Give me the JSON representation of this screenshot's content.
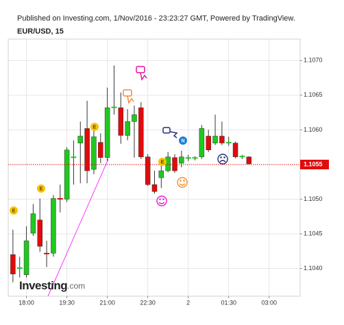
{
  "chart_data": {
    "type": "candlestick",
    "header": "Published on Investing.com, 1/Nov/2016 - 23:23:27 GMT, Powered by TradingView.",
    "title": "EUR/USD, 15",
    "logo": {
      "brand": "Investing",
      "suffix": ".com"
    },
    "up_color": "#1fc81f",
    "down_color": "#e00b0b",
    "open": [
      1.1042,
      1.104,
      1.10391,
      1.10451,
      1.1047,
      1.10422,
      1.10422,
      1.10501,
      1.105,
      1.1056,
      1.10581,
      1.10602,
      1.10543,
      1.10582,
      1.1056,
      1.10632,
      1.10632,
      1.10592,
      1.10612,
      1.10632,
      1.10561,
      1.10521,
      1.10531,
      1.10541,
      1.1056,
      1.10552,
      1.10559,
      1.10559,
      1.10561,
      1.10591,
      1.10581,
      1.10591,
      1.10581,
      1.10581,
      1.10561,
      1.10561
    ],
    "high": [
      1.10456,
      1.10417,
      1.10461,
      1.10493,
      1.10501,
      1.1044,
      1.10506,
      1.10521,
      1.10575,
      1.10585,
      1.10612,
      1.10642,
      1.106,
      1.10595,
      1.10661,
      1.10693,
      1.10654,
      1.1063,
      1.10635,
      1.1064,
      1.10565,
      1.10541,
      1.1055,
      1.10568,
      1.10565,
      1.1057,
      1.10564,
      1.10562,
      1.10607,
      1.106,
      1.10622,
      1.10612,
      1.1059,
      1.10583,
      1.10564,
      1.10562
    ],
    "low": [
      1.1038,
      1.10387,
      1.10387,
      1.10447,
      1.10424,
      1.10402,
      1.10417,
      1.10481,
      1.10496,
      1.10521,
      1.10523,
      1.10523,
      1.10536,
      1.10552,
      1.10555,
      1.10622,
      1.1058,
      1.10585,
      1.1056,
      1.10558,
      1.10519,
      1.10508,
      1.10516,
      1.10539,
      1.10538,
      1.10546,
      1.10555,
      1.10556,
      1.10558,
      1.10568,
      1.10578,
      1.10578,
      1.10577,
      1.10559,
      1.10558,
      1.1055
    ],
    "close": [
      1.10392,
      1.10401,
      1.1044,
      1.10479,
      1.10432,
      1.10421,
      1.10501,
      1.105,
      1.10571,
      1.10561,
      1.10591,
      1.10541,
      1.1059,
      1.1056,
      1.10632,
      1.10633,
      1.10592,
      1.10612,
      1.10622,
      1.10561,
      1.10521,
      1.10511,
      1.10541,
      1.10561,
      1.10541,
      1.10561,
      1.1056,
      1.1056,
      1.10602,
      1.10571,
      1.10591,
      1.10581,
      1.10582,
      1.10561,
      1.10562,
      1.10551
    ],
    "xlim": [
      -0.7,
      42.6
    ],
    "xticks": [
      {
        "value": 2,
        "label": "18:00"
      },
      {
        "value": 8,
        "label": "19:30"
      },
      {
        "value": 14,
        "label": "21:00"
      },
      {
        "value": 20,
        "label": "22:30"
      },
      {
        "value": 26,
        "label": "2"
      },
      {
        "value": 32,
        "label": "01:30"
      },
      {
        "value": 38,
        "label": "03:00"
      }
    ],
    "ylim": [
      1.1036,
      1.10731
    ],
    "yticks": [
      {
        "value": 1.104,
        "label": "1.1040"
      },
      1.1045,
      {
        "value": 1.105,
        "label": "1.1050"
      },
      {
        "value": 1.106,
        "label": "1.1060"
      },
      1.1065,
      {
        "value": 1.107,
        "label": "1.1070"
      }
    ],
    "last_price": 1.1055,
    "event_labels": [
      "E",
      "E",
      "E",
      "E",
      "N"
    ],
    "grid": true
  }
}
